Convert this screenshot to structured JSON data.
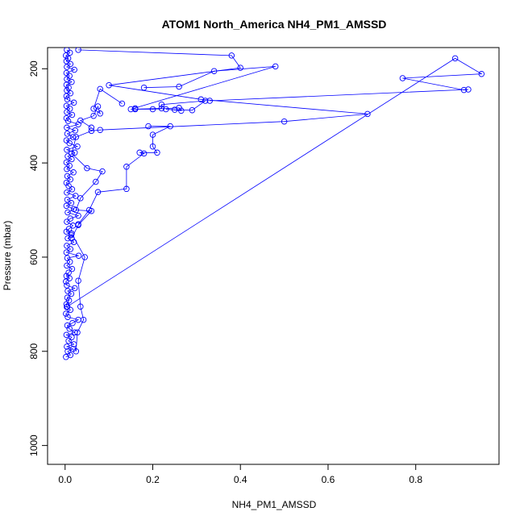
{
  "chart_data": {
    "type": "line",
    "title": "ATOM1 North_America NH4_PM1_AMSSD",
    "xlabel": "NH4_PM1_AMSSD",
    "ylabel": "Pressure (mbar)",
    "xlim": [
      -0.04,
      0.99
    ],
    "ylim": [
      1040,
      155
    ],
    "y_reversed": true,
    "x_ticks": [
      0.0,
      0.2,
      0.4,
      0.6,
      0.8
    ],
    "x_tick_labels": [
      "0.0",
      "0.2",
      "0.4",
      "0.6",
      "0.8"
    ],
    "y_ticks": [
      200,
      400,
      600,
      800,
      1000
    ],
    "y_tick_labels": [
      "200",
      "400",
      "600",
      "800",
      "1000"
    ],
    "grid": false,
    "series": [
      {
        "color": "#0000ff",
        "marker": "open-circle",
        "points": [
          [
            0.002,
            812
          ],
          [
            0.012,
            808
          ],
          [
            0.006,
            800
          ],
          [
            0.018,
            795
          ],
          [
            0.004,
            790
          ],
          [
            0.02,
            785
          ],
          [
            0.008,
            778
          ],
          [
            0.015,
            770
          ],
          [
            0.003,
            765
          ],
          [
            0.022,
            760
          ],
          [
            0.01,
            752
          ],
          [
            0.005,
            745
          ],
          [
            0.017,
            740
          ],
          [
            0.03,
            733
          ],
          [
            0.006,
            727
          ],
          [
            0.002,
            720
          ],
          [
            0.012,
            712
          ],
          [
            0.004,
            706
          ],
          [
            0.003,
            700
          ],
          [
            0.009,
            692
          ],
          [
            0.005,
            686
          ],
          [
            0.014,
            678
          ],
          [
            0.006,
            672
          ],
          [
            0.022,
            666
          ],
          [
            0.004,
            660
          ],
          [
            0.002,
            652
          ],
          [
            0.01,
            645
          ],
          [
            0.003,
            640
          ],
          [
            0.008,
            633
          ],
          [
            0.016,
            625
          ],
          [
            0.004,
            618
          ],
          [
            0.011,
            610
          ],
          [
            0.005,
            602
          ],
          [
            0.031,
            597
          ],
          [
            0.003,
            590
          ],
          [
            0.012,
            583
          ],
          [
            0.004,
            576
          ],
          [
            0.02,
            568
          ],
          [
            0.006,
            560
          ],
          [
            0.014,
            553
          ],
          [
            0.003,
            546
          ],
          [
            0.009,
            540
          ],
          [
            0.018,
            533
          ],
          [
            0.004,
            525
          ],
          [
            0.012,
            518
          ],
          [
            0.03,
            512
          ],
          [
            0.006,
            505
          ],
          [
            0.02,
            498
          ],
          [
            0.003,
            491
          ],
          [
            0.014,
            485
          ],
          [
            0.005,
            478
          ],
          [
            0.024,
            470
          ],
          [
            0.004,
            463
          ],
          [
            0.016,
            456
          ],
          [
            0.008,
            449
          ],
          [
            0.003,
            442
          ],
          [
            0.012,
            435
          ],
          [
            0.005,
            428
          ],
          [
            0.019,
            420
          ],
          [
            0.004,
            413
          ],
          [
            0.01,
            406
          ],
          [
            0.003,
            399
          ],
          [
            0.015,
            392
          ],
          [
            0.006,
            386
          ],
          [
            0.022,
            378
          ],
          [
            0.004,
            372
          ],
          [
            0.028,
            365
          ],
          [
            0.01,
            358
          ],
          [
            0.003,
            352
          ],
          [
            0.018,
            345
          ],
          [
            0.005,
            338
          ],
          [
            0.023,
            331
          ],
          [
            0.004,
            325
          ],
          [
            0.03,
            318
          ],
          [
            0.007,
            311
          ],
          [
            0.003,
            305
          ],
          [
            0.016,
            298
          ],
          [
            0.004,
            292
          ],
          [
            0.011,
            285
          ],
          [
            0.003,
            279
          ],
          [
            0.02,
            272
          ],
          [
            0.005,
            265
          ],
          [
            0.003,
            258
          ],
          [
            0.012,
            252
          ],
          [
            0.004,
            246
          ],
          [
            0.008,
            240
          ],
          [
            0.003,
            234
          ],
          [
            0.015,
            228
          ],
          [
            0.004,
            222
          ],
          [
            0.01,
            215
          ],
          [
            0.003,
            209
          ],
          [
            0.021,
            202
          ],
          [
            0.004,
            196
          ],
          [
            0.012,
            190
          ],
          [
            0.003,
            184
          ],
          [
            0.007,
            178
          ],
          [
            0.002,
            172
          ],
          [
            0.011,
            166
          ],
          [
            0.004,
            160
          ]
        ]
      },
      {
        "color": "#0000ff",
        "marker": "open-circle",
        "points": [
          [
            0.03,
            160
          ],
          [
            0.38,
            172
          ],
          [
            0.4,
            198
          ],
          [
            0.1,
            235
          ],
          [
            0.31,
            265
          ],
          [
            0.69,
            296
          ],
          [
            0.5,
            312
          ],
          [
            0.08,
            330
          ],
          [
            0.06,
            332
          ],
          [
            0.025,
            345
          ],
          [
            0.015,
            380
          ],
          [
            0.05,
            411
          ],
          [
            0.085,
            418
          ],
          [
            0.07,
            440
          ],
          [
            0.035,
            475
          ],
          [
            0.025,
            500
          ],
          [
            0.06,
            502
          ],
          [
            0.03,
            532
          ],
          [
            0.015,
            560
          ]
        ]
      },
      {
        "color": "#0000ff",
        "marker": "open-circle",
        "points": [
          [
            0.18,
            240
          ],
          [
            0.26,
            238
          ],
          [
            0.34,
            205
          ],
          [
            0.48,
            195
          ],
          [
            0.15,
            286
          ],
          [
            0.22,
            284
          ],
          [
            0.22,
            276
          ],
          [
            0.32,
            268
          ],
          [
            0.29,
            288
          ],
          [
            0.25,
            287
          ],
          [
            0.23,
            286
          ],
          [
            0.265,
            289
          ],
          [
            0.26,
            283
          ],
          [
            0.2,
            286
          ],
          [
            0.16,
            286
          ],
          [
            0.16,
            284
          ]
        ]
      },
      {
        "color": "#0000ff",
        "marker": "open-circle",
        "points": [
          [
            0.13,
            274
          ],
          [
            0.08,
            243
          ],
          [
            0.065,
            285
          ],
          [
            0.08,
            295
          ],
          [
            0.075,
            280
          ],
          [
            0.065,
            300
          ],
          [
            0.035,
            310
          ],
          [
            0.06,
            325
          ]
        ]
      },
      {
        "color": "#0000ff",
        "marker": "open-circle",
        "points": [
          [
            0.19,
            322
          ],
          [
            0.24,
            322
          ],
          [
            0.2,
            340
          ],
          [
            0.2,
            365
          ],
          [
            0.21,
            378
          ],
          [
            0.17,
            378
          ],
          [
            0.18,
            380
          ],
          [
            0.14,
            408
          ],
          [
            0.14,
            455
          ],
          [
            0.075,
            462
          ],
          [
            0.055,
            500
          ],
          [
            0.03,
            530
          ]
        ]
      },
      {
        "color": "#0000ff",
        "marker": "open-circle",
        "points": [
          [
            0.005,
            705
          ],
          [
            0.89,
            178
          ],
          [
            0.95,
            211
          ],
          [
            0.77,
            220
          ],
          [
            0.91,
            245
          ],
          [
            0.92,
            244
          ],
          [
            0.33,
            268
          ]
        ]
      },
      {
        "color": "#0000ff",
        "marker": "open-circle",
        "points": [
          [
            0.015,
            550
          ],
          [
            0.045,
            600
          ],
          [
            0.03,
            650
          ],
          [
            0.035,
            705
          ],
          [
            0.042,
            733
          ],
          [
            0.028,
            760
          ],
          [
            0.025,
            800
          ]
        ]
      }
    ]
  }
}
